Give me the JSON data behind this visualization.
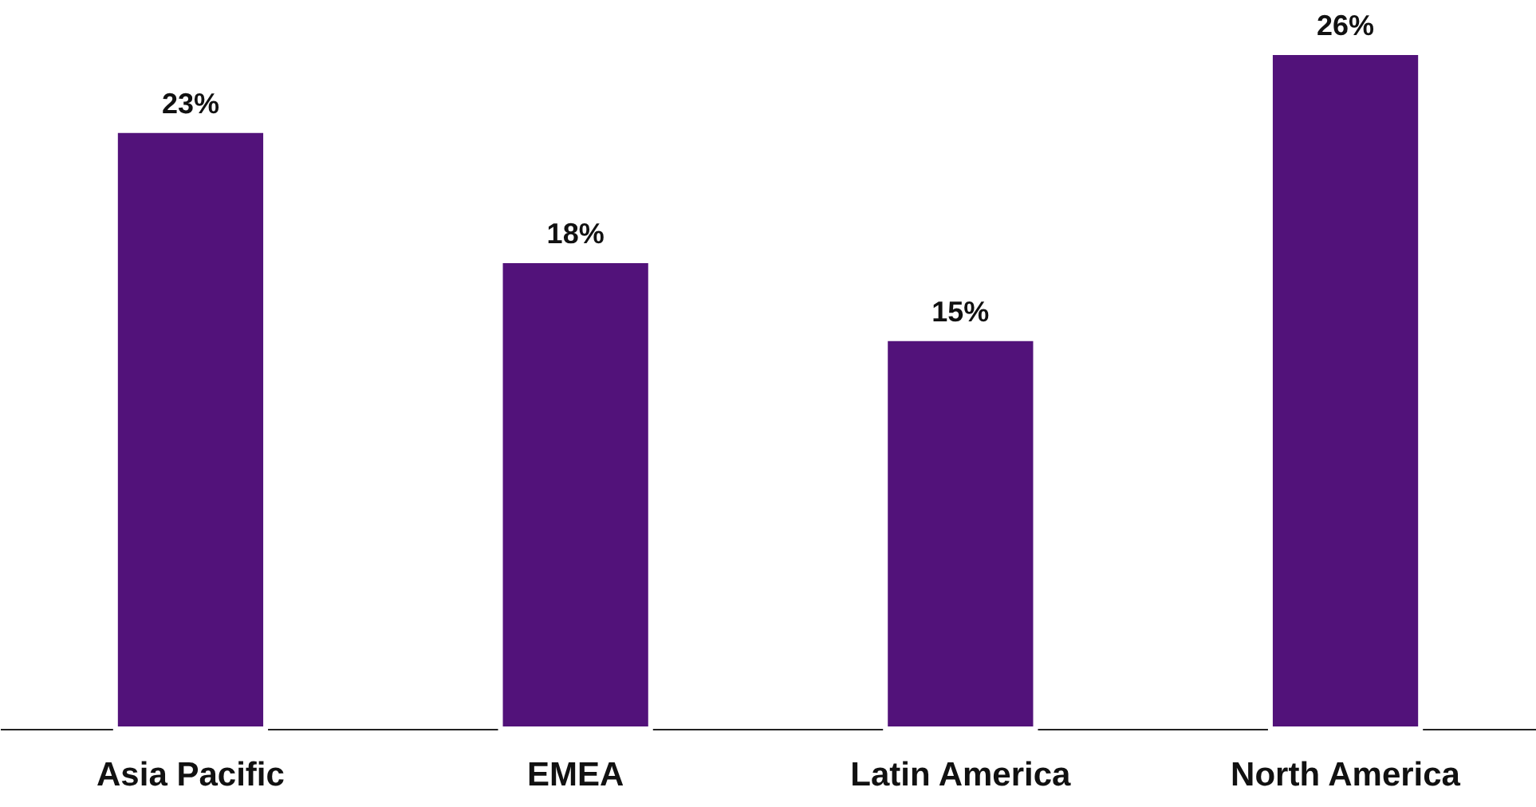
{
  "chart_data": {
    "type": "bar",
    "categories": [
      "Asia Pacific",
      "EMEA",
      "Latin America",
      "North America"
    ],
    "values": [
      23,
      18,
      15,
      26
    ],
    "value_labels": [
      "23%",
      "18%",
      "15%",
      "26%"
    ],
    "color": "#52127a",
    "grid": false
  }
}
